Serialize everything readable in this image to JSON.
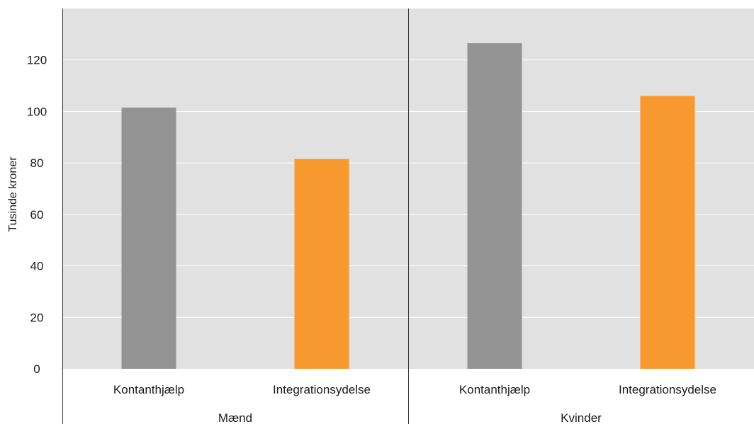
{
  "chart_data": {
    "type": "bar",
    "groups": [
      "Mænd",
      "Kvinder"
    ],
    "categories": [
      "Kontanthjælp",
      "Integrationsydelse"
    ],
    "values": [
      [
        101.5,
        81.5
      ],
      [
        126.5,
        106
      ]
    ],
    "ylabel": "Tusinde kroner",
    "ylim": [
      0,
      140
    ],
    "yticks": [
      0,
      20,
      40,
      60,
      80,
      100,
      120
    ],
    "grid": true,
    "colors": {
      "Kontanthjælp": "#939393",
      "Integrationsydelse": "#F7992F",
      "plot_background": "#E1E1E1",
      "gridline": "#ffffff"
    }
  }
}
